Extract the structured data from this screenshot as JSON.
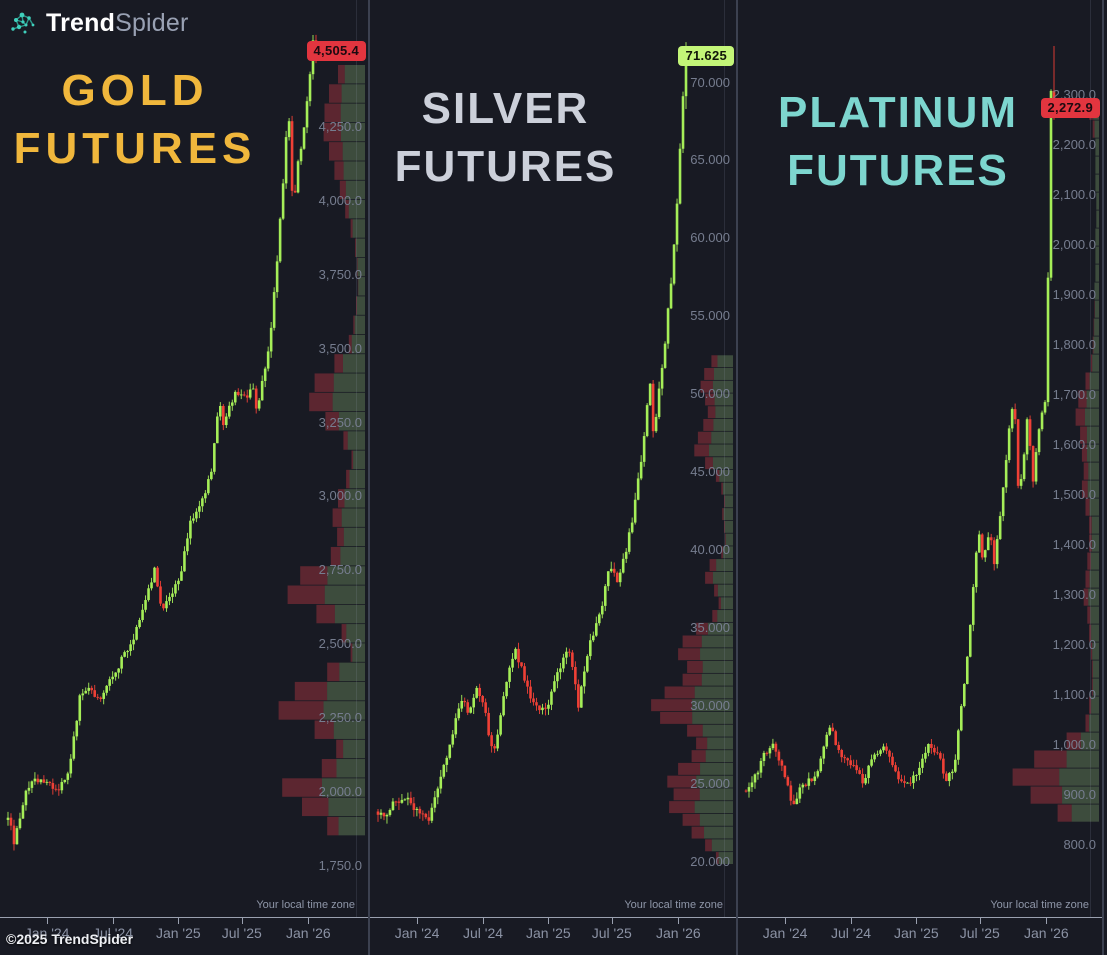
{
  "brand": {
    "trend": "Trend",
    "spider": "Spider",
    "icon": "trendspider-network-icon",
    "icon_color": "#36b2a2"
  },
  "copyright": "©2025 TrendSpider",
  "timezone_note": "Your local time zone",
  "x_ticks": [
    {
      "label": "Jan '24",
      "t": 0.127
    },
    {
      "label": "Jul '24",
      "t": 0.341
    },
    {
      "label": "Jan '25",
      "t": 0.553
    },
    {
      "label": "Jul '25",
      "t": 0.759
    },
    {
      "label": "Jan '26",
      "t": 0.975
    }
  ],
  "colors": {
    "background": "#181a23",
    "separator": "#3c4150",
    "axis_line": "#9aa0af",
    "x_tick_text": "#8b92a4",
    "y_tick_text": "#767d8f",
    "timezone_text": "#8f97a9",
    "candle_up": "#a5ee58",
    "candle_down": "#ef4036",
    "profile_up": "rgba(141,185,117,0.32)",
    "profile_down": "rgba(222,63,74,0.35)"
  },
  "layout_hints": {
    "grid": "off",
    "legend": "none",
    "candles_per_series": 104
  },
  "chart_data": [
    {
      "type": "candlestick",
      "symbol": "gold",
      "title_line1": "GOLD",
      "title_line2": "FUTURES",
      "title_color": "#f0b73c",
      "last_price_label": "4,505.4",
      "last_value": 4505.4,
      "last_high": 4562,
      "direction": "down",
      "label_bg": "#e2353f",
      "label_fg": "#1c0a10",
      "y_min": 1600,
      "y_max": 4680,
      "y_ticks": [
        {
          "v": 4250,
          "label": "4,250.0"
        },
        {
          "v": 4000,
          "label": "4,000.0"
        },
        {
          "v": 3750,
          "label": "3,750.0"
        },
        {
          "v": 3500,
          "label": "3,500.0"
        },
        {
          "v": 3250,
          "label": "3,250.0"
        },
        {
          "v": 3000,
          "label": "3,000.0"
        },
        {
          "v": 2750,
          "label": "2,750.0"
        },
        {
          "v": 2500,
          "label": "2,500.0"
        },
        {
          "v": 2250,
          "label": "2,250.0"
        },
        {
          "v": 2000,
          "label": "2,000.0"
        },
        {
          "v": 1750,
          "label": "1,750.0"
        }
      ],
      "wiggle": 26,
      "seed": 3,
      "anchors": [
        [
          0,
          1920
        ],
        [
          0.02,
          1830
        ],
        [
          0.045,
          1950
        ],
        [
          0.07,
          2030
        ],
        [
          0.1,
          2045
        ],
        [
          0.13,
          2030
        ],
        [
          0.165,
          2000
        ],
        [
          0.2,
          2085
        ],
        [
          0.235,
          2330
        ],
        [
          0.26,
          2345
        ],
        [
          0.285,
          2320
        ],
        [
          0.31,
          2330
        ],
        [
          0.345,
          2400
        ],
        [
          0.38,
          2470
        ],
        [
          0.41,
          2520
        ],
        [
          0.45,
          2665
        ],
        [
          0.475,
          2750
        ],
        [
          0.5,
          2620
        ],
        [
          0.52,
          2640
        ],
        [
          0.555,
          2715
        ],
        [
          0.59,
          2900
        ],
        [
          0.625,
          2980
        ],
        [
          0.645,
          3020
        ],
        [
          0.665,
          3120
        ],
        [
          0.685,
          3330
        ],
        [
          0.7,
          3230
        ],
        [
          0.72,
          3320
        ],
        [
          0.745,
          3350
        ],
        [
          0.77,
          3330
        ],
        [
          0.795,
          3360
        ],
        [
          0.81,
          3290
        ],
        [
          0.83,
          3420
        ],
        [
          0.845,
          3480
        ],
        [
          0.86,
          3640
        ],
        [
          0.875,
          3820
        ],
        [
          0.895,
          4080
        ],
        [
          0.91,
          4330
        ],
        [
          0.925,
          3960
        ],
        [
          0.94,
          4130
        ],
        [
          0.955,
          4200
        ],
        [
          0.97,
          4320
        ],
        [
          0.99,
          4545
        ],
        [
          1,
          4505.4
        ]
      ],
      "profile": {
        "top": 4460,
        "bottom": 1850,
        "max_w": 90,
        "bins": [
          [
            30,
            25
          ],
          [
            40,
            35
          ],
          [
            45,
            40
          ],
          [
            46,
            42
          ],
          [
            40,
            38
          ],
          [
            34,
            30
          ],
          [
            28,
            24
          ],
          [
            22,
            18
          ],
          [
            16,
            14
          ],
          [
            11,
            10
          ],
          [
            9,
            8
          ],
          [
            8,
            6
          ],
          [
            10,
            10
          ],
          [
            13,
            12
          ],
          [
            18,
            18
          ],
          [
            34,
            28
          ],
          [
            56,
            38
          ],
          [
            62,
            42
          ],
          [
            44,
            34
          ],
          [
            24,
            20
          ],
          [
            15,
            12
          ],
          [
            21,
            18
          ],
          [
            30,
            24
          ],
          [
            36,
            28
          ],
          [
            31,
            24
          ],
          [
            38,
            28
          ],
          [
            72,
            42
          ],
          [
            86,
            48
          ],
          [
            54,
            38
          ],
          [
            26,
            20
          ],
          [
            16,
            12
          ],
          [
            42,
            32
          ],
          [
            78,
            46
          ],
          [
            96,
            52
          ],
          [
            56,
            38
          ],
          [
            32,
            24
          ],
          [
            48,
            34
          ],
          [
            92,
            48
          ],
          [
            70,
            42
          ],
          [
            42,
            30
          ]
        ]
      }
    },
    {
      "type": "candlestick",
      "symbol": "silver",
      "title_line1": "SILVER",
      "title_line2": "FUTURES",
      "title_color": "#ccd0da",
      "last_price_label": "71.625",
      "last_value": 71.625,
      "last_high": 72.6,
      "direction": "up",
      "label_bg": "#c3f578",
      "label_fg": "#111509",
      "y_min": 16.9,
      "y_max": 75.3,
      "y_ticks": [
        {
          "v": 70,
          "label": "70.000"
        },
        {
          "v": 65,
          "label": "65.000"
        },
        {
          "v": 60,
          "label": "60.000"
        },
        {
          "v": 55,
          "label": "55.000"
        },
        {
          "v": 50,
          "label": "50.000"
        },
        {
          "v": 45,
          "label": "45.000"
        },
        {
          "v": 40,
          "label": "40.000"
        },
        {
          "v": 35,
          "label": "35.000"
        },
        {
          "v": 30,
          "label": "30.000"
        },
        {
          "v": 25,
          "label": "25.000"
        },
        {
          "v": 20,
          "label": "20.000"
        }
      ],
      "wiggle": 0.55,
      "seed": 11,
      "anchors": [
        [
          0,
          22.8
        ],
        [
          0.03,
          23.1
        ],
        [
          0.06,
          23.9
        ],
        [
          0.09,
          24.2
        ],
        [
          0.127,
          23.2
        ],
        [
          0.16,
          22.5
        ],
        [
          0.2,
          24.9
        ],
        [
          0.235,
          27.6
        ],
        [
          0.27,
          30.6
        ],
        [
          0.29,
          29.6
        ],
        [
          0.32,
          30.9
        ],
        [
          0.345,
          30.2
        ],
        [
          0.36,
          28.2
        ],
        [
          0.38,
          27.0
        ],
        [
          0.41,
          30.9
        ],
        [
          0.445,
          33.7
        ],
        [
          0.47,
          32.2
        ],
        [
          0.5,
          30.3
        ],
        [
          0.52,
          29.6
        ],
        [
          0.555,
          30.3
        ],
        [
          0.59,
          32.4
        ],
        [
          0.625,
          33.7
        ],
        [
          0.65,
          29.8
        ],
        [
          0.675,
          33.0
        ],
        [
          0.7,
          34.8
        ],
        [
          0.725,
          36.2
        ],
        [
          0.75,
          38.7
        ],
        [
          0.775,
          38.1
        ],
        [
          0.8,
          39.6
        ],
        [
          0.825,
          41.8
        ],
        [
          0.845,
          44.5
        ],
        [
          0.865,
          47.5
        ],
        [
          0.882,
          51.0
        ],
        [
          0.895,
          46.8
        ],
        [
          0.912,
          50.2
        ],
        [
          0.928,
          52.6
        ],
        [
          0.944,
          55.8
        ],
        [
          0.958,
          58.5
        ],
        [
          0.972,
          62.5
        ],
        [
          0.99,
          68.8
        ],
        [
          1,
          71.625
        ]
      ],
      "profile": {
        "top": 52.5,
        "bottom": 19.8,
        "max_w": 90,
        "bins": [
          [
            24,
            28
          ],
          [
            32,
            34
          ],
          [
            36,
            38
          ],
          [
            31,
            34
          ],
          [
            28,
            30
          ],
          [
            33,
            34
          ],
          [
            39,
            38
          ],
          [
            43,
            38
          ],
          [
            31,
            28
          ],
          [
            19,
            20
          ],
          [
            13,
            14
          ],
          [
            10,
            10
          ],
          [
            12,
            14
          ],
          [
            10,
            10
          ],
          [
            9,
            10
          ],
          [
            13,
            14
          ],
          [
            26,
            28
          ],
          [
            31,
            28
          ],
          [
            21,
            20
          ],
          [
            16,
            16
          ],
          [
            23,
            24
          ],
          [
            41,
            32
          ],
          [
            56,
            38
          ],
          [
            61,
            40
          ],
          [
            51,
            34
          ],
          [
            56,
            38
          ],
          [
            76,
            44
          ],
          [
            91,
            50
          ],
          [
            81,
            44
          ],
          [
            51,
            34
          ],
          [
            41,
            30
          ],
          [
            46,
            34
          ],
          [
            61,
            40
          ],
          [
            73,
            44
          ],
          [
            66,
            44
          ],
          [
            71,
            40
          ],
          [
            56,
            34
          ],
          [
            46,
            30
          ],
          [
            31,
            24
          ],
          [
            19,
            16
          ]
        ]
      }
    },
    {
      "type": "candlestick",
      "symbol": "platinum",
      "title_line1": "PLATINUM",
      "title_line2": "FUTURES",
      "title_color": "#7dd6cf",
      "last_price_label": "2,272.9",
      "last_value": 2272.9,
      "last_high": 2398,
      "direction": "down",
      "label_bg": "#e2353f",
      "label_fg": "#1c0a10",
      "y_min": 670,
      "y_max": 2490,
      "y_ticks": [
        {
          "v": 2300,
          "label": "2,300.0"
        },
        {
          "v": 2200,
          "label": "2,200.0"
        },
        {
          "v": 2100,
          "label": "2,100.0"
        },
        {
          "v": 2000,
          "label": "2,000.0"
        },
        {
          "v": 1900,
          "label": "1,900.0"
        },
        {
          "v": 1800,
          "label": "1,800.0"
        },
        {
          "v": 1700,
          "label": "1,700.0"
        },
        {
          "v": 1600,
          "label": "1,600.0"
        },
        {
          "v": 1500,
          "label": "1,500.0"
        },
        {
          "v": 1400,
          "label": "1,400.0"
        },
        {
          "v": 1300,
          "label": "1,300.0"
        },
        {
          "v": 1200,
          "label": "1,200.0"
        },
        {
          "v": 1100,
          "label": "1,100.0"
        },
        {
          "v": 1000,
          "label": "1,000.0"
        },
        {
          "v": 900,
          "label": "900.0"
        },
        {
          "v": 800,
          "label": "800.0"
        }
      ],
      "wiggle": 15,
      "seed": 23,
      "anchors": [
        [
          0,
          905
        ],
        [
          0.03,
          935
        ],
        [
          0.06,
          985
        ],
        [
          0.09,
          1000
        ],
        [
          0.127,
          935
        ],
        [
          0.15,
          875
        ],
        [
          0.17,
          905
        ],
        [
          0.2,
          925
        ],
        [
          0.235,
          945
        ],
        [
          0.27,
          1045
        ],
        [
          0.3,
          990
        ],
        [
          0.345,
          960
        ],
        [
          0.38,
          928
        ],
        [
          0.41,
          975
        ],
        [
          0.445,
          1000
        ],
        [
          0.48,
          950
        ],
        [
          0.52,
          918
        ],
        [
          0.555,
          948
        ],
        [
          0.59,
          1000
        ],
        [
          0.625,
          985
        ],
        [
          0.65,
          925
        ],
        [
          0.675,
          955
        ],
        [
          0.7,
          1075
        ],
        [
          0.72,
          1180
        ],
        [
          0.735,
          1290
        ],
        [
          0.755,
          1430
        ],
        [
          0.77,
          1360
        ],
        [
          0.79,
          1435
        ],
        [
          0.805,
          1355
        ],
        [
          0.825,
          1455
        ],
        [
          0.84,
          1545
        ],
        [
          0.855,
          1640
        ],
        [
          0.87,
          1700
        ],
        [
          0.885,
          1495
        ],
        [
          0.9,
          1560
        ],
        [
          0.915,
          1665
        ],
        [
          0.93,
          1520
        ],
        [
          0.945,
          1605
        ],
        [
          0.96,
          1660
        ],
        [
          0.975,
          1705
        ],
        [
          0.99,
          2310
        ],
        [
          1,
          2272.9
        ]
      ],
      "profile": {
        "top": 2285,
        "bottom": 845,
        "max_w": 90,
        "bins": [
          [
            11,
            42
          ],
          [
            7,
            30
          ],
          [
            4,
            0
          ],
          [
            4,
            0
          ],
          [
            4,
            0
          ],
          [
            3,
            0
          ],
          [
            3,
            0
          ],
          [
            4,
            0
          ],
          [
            4,
            0
          ],
          [
            4,
            0
          ],
          [
            5,
            0
          ],
          [
            5,
            10
          ],
          [
            6,
            10
          ],
          [
            7,
            12
          ],
          [
            9,
            16
          ],
          [
            15,
            30
          ],
          [
            23,
            40
          ],
          [
            26,
            40
          ],
          [
            21,
            36
          ],
          [
            19,
            30
          ],
          [
            17,
            30
          ],
          [
            19,
            34
          ],
          [
            15,
            30
          ],
          [
            11,
            26
          ],
          [
            11,
            26
          ],
          [
            13,
            30
          ],
          [
            15,
            30
          ],
          [
            17,
            30
          ],
          [
            13,
            26
          ],
          [
            11,
            20
          ],
          [
            9,
            16
          ],
          [
            8,
            14
          ],
          [
            8,
            14
          ],
          [
            11,
            20
          ],
          [
            15,
            26
          ],
          [
            36,
            44
          ],
          [
            72,
            50
          ],
          [
            96,
            54
          ],
          [
            76,
            46
          ],
          [
            46,
            34
          ]
        ]
      }
    }
  ]
}
